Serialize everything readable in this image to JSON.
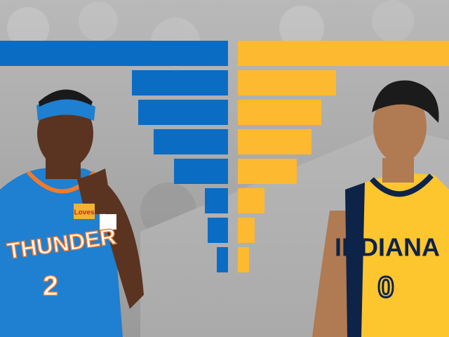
{
  "chart_data": {
    "type": "butterfly",
    "series": [
      {
        "color": "#0b6cc4",
        "values": [
          325,
          137,
          128,
          106,
          77,
          33,
          29,
          16
        ]
      },
      {
        "color": "#fdb92f",
        "values": [
          301,
          140,
          119,
          105,
          84,
          38,
          24,
          16
        ]
      }
    ],
    "xlim": [
      0,
      325
    ]
  },
  "photo": {
    "left_jersey": {
      "team": "THUNDER",
      "number": "2",
      "sponsor": "Loves"
    },
    "right_jersey": {
      "team": "INDIANA",
      "number": "0"
    }
  }
}
